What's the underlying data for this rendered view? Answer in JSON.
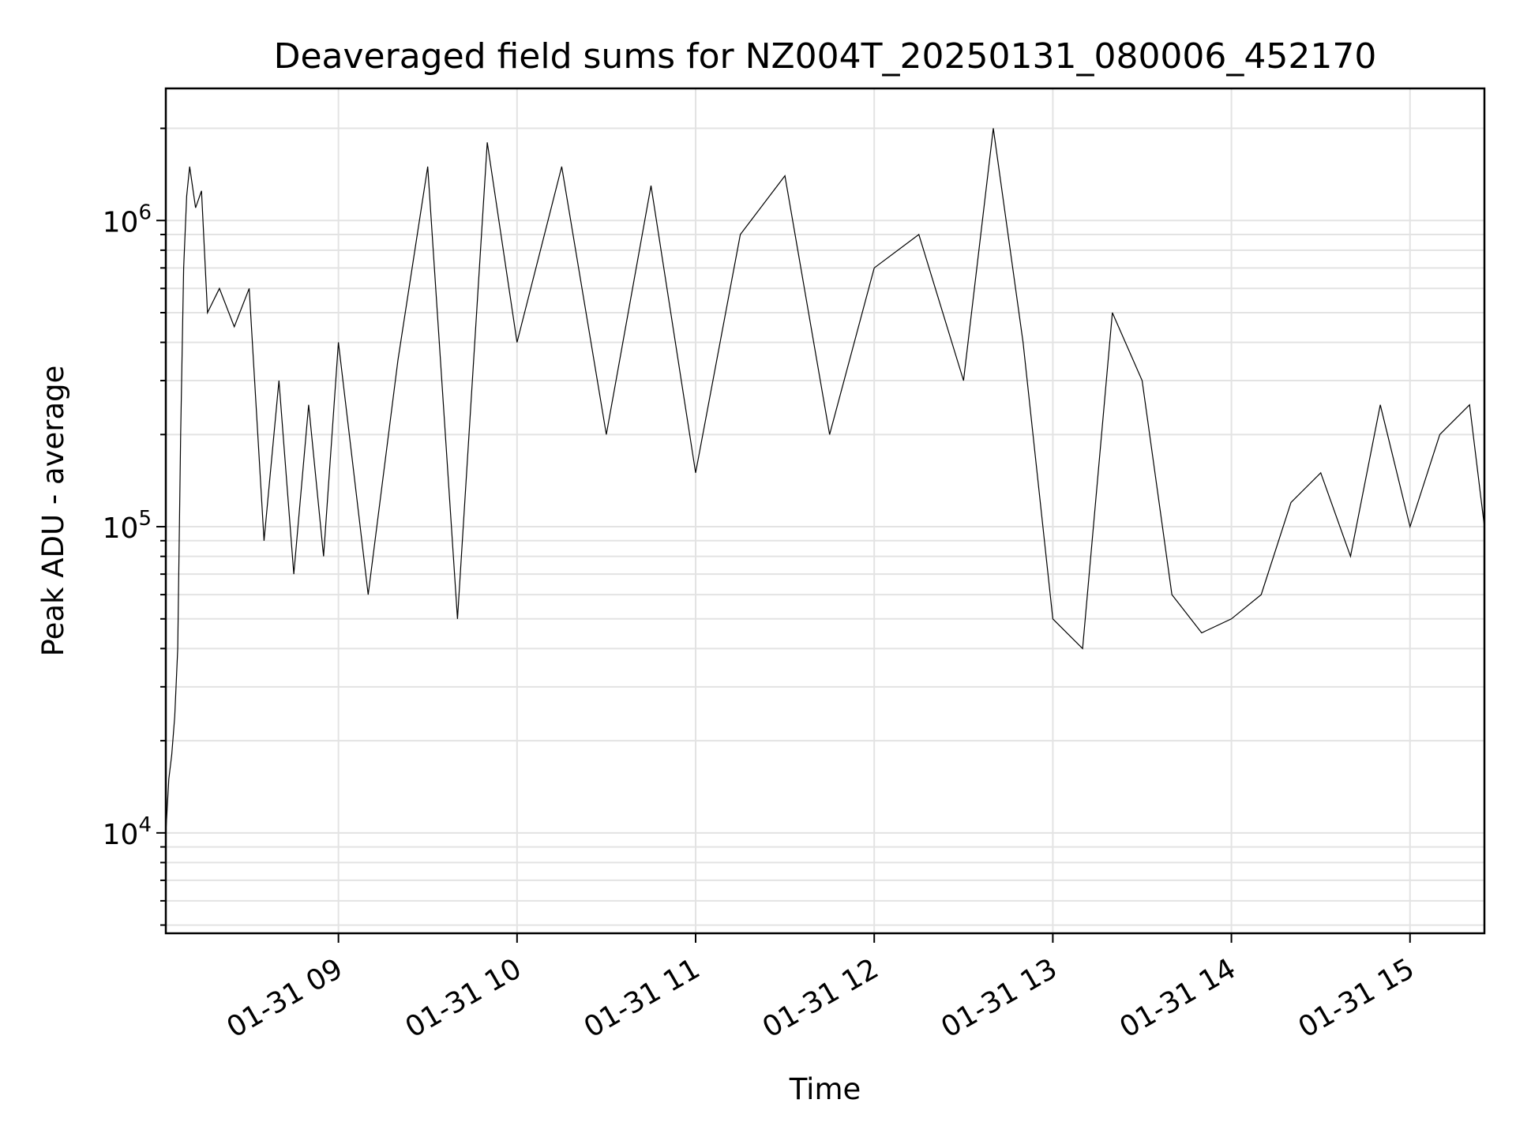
{
  "chart_data": {
    "type": "line",
    "title": "Deaveraged field sums for NZ004T_20250131_080006_452170",
    "xlabel": "Time",
    "ylabel": "Peak ADU - average",
    "x_scale": "time",
    "y_scale": "log",
    "xlim": [
      "2025-01-31 08:02",
      "2025-01-31 15:25"
    ],
    "ylim": [
      4700,
      2700000
    ],
    "grid": true,
    "x_ticks": [
      {
        "value": "2025-01-31 09:00",
        "label": "01-31 09"
      },
      {
        "value": "2025-01-31 10:00",
        "label": "01-31 10"
      },
      {
        "value": "2025-01-31 11:00",
        "label": "01-31 11"
      },
      {
        "value": "2025-01-31 12:00",
        "label": "01-31 12"
      },
      {
        "value": "2025-01-31 13:00",
        "label": "01-31 13"
      },
      {
        "value": "2025-01-31 14:00",
        "label": "01-31 14"
      },
      {
        "value": "2025-01-31 15:00",
        "label": "01-31 15"
      }
    ],
    "y_ticks": [
      {
        "value": 10000,
        "base": "10",
        "exp": "4"
      },
      {
        "value": 100000,
        "base": "10",
        "exp": "5"
      },
      {
        "value": 1000000,
        "base": "10",
        "exp": "6"
      }
    ],
    "series": [
      {
        "color": "#000000",
        "points": [
          [
            "2025-01-31 08:02",
            10000
          ],
          [
            "2025-01-31 08:03",
            15000
          ],
          [
            "2025-01-31 08:04",
            18000
          ],
          [
            "2025-01-31 08:05",
            24000
          ],
          [
            "2025-01-31 08:06",
            40000
          ],
          [
            "2025-01-31 08:07",
            200000
          ],
          [
            "2025-01-31 08:08",
            700000
          ],
          [
            "2025-01-31 08:09",
            1200000
          ],
          [
            "2025-01-31 08:10",
            1500000
          ],
          [
            "2025-01-31 08:12",
            1100000
          ],
          [
            "2025-01-31 08:14",
            1250000
          ],
          [
            "2025-01-31 08:16",
            500000
          ],
          [
            "2025-01-31 08:20",
            600000
          ],
          [
            "2025-01-31 08:25",
            450000
          ],
          [
            "2025-01-31 08:30",
            600000
          ],
          [
            "2025-01-31 08:35",
            90000
          ],
          [
            "2025-01-31 08:40",
            300000
          ],
          [
            "2025-01-31 08:45",
            70000
          ],
          [
            "2025-01-31 08:50",
            250000
          ],
          [
            "2025-01-31 08:55",
            80000
          ],
          [
            "2025-01-31 09:00",
            400000
          ],
          [
            "2025-01-31 09:10",
            60000
          ],
          [
            "2025-01-31 09:20",
            350000
          ],
          [
            "2025-01-31 09:30",
            1500000
          ],
          [
            "2025-01-31 09:40",
            50000
          ],
          [
            "2025-01-31 09:50",
            1800000
          ],
          [
            "2025-01-31 10:00",
            400000
          ],
          [
            "2025-01-31 10:15",
            1500000
          ],
          [
            "2025-01-31 10:30",
            200000
          ],
          [
            "2025-01-31 10:45",
            1300000
          ],
          [
            "2025-01-31 11:00",
            150000
          ],
          [
            "2025-01-31 11:15",
            900000
          ],
          [
            "2025-01-31 11:30",
            1400000
          ],
          [
            "2025-01-31 11:45",
            200000
          ],
          [
            "2025-01-31 12:00",
            700000
          ],
          [
            "2025-01-31 12:15",
            900000
          ],
          [
            "2025-01-31 12:30",
            300000
          ],
          [
            "2025-01-31 12:40",
            2000000
          ],
          [
            "2025-01-31 12:50",
            400000
          ],
          [
            "2025-01-31 13:00",
            50000
          ],
          [
            "2025-01-31 13:10",
            40000
          ],
          [
            "2025-01-31 13:20",
            500000
          ],
          [
            "2025-01-31 13:30",
            300000
          ],
          [
            "2025-01-31 13:40",
            60000
          ],
          [
            "2025-01-31 13:50",
            45000
          ],
          [
            "2025-01-31 14:00",
            50000
          ],
          [
            "2025-01-31 14:10",
            60000
          ],
          [
            "2025-01-31 14:20",
            120000
          ],
          [
            "2025-01-31 14:30",
            150000
          ],
          [
            "2025-01-31 14:40",
            80000
          ],
          [
            "2025-01-31 14:50",
            250000
          ],
          [
            "2025-01-31 15:00",
            100000
          ],
          [
            "2025-01-31 15:10",
            200000
          ],
          [
            "2025-01-31 15:20",
            250000
          ],
          [
            "2025-01-31 15:25",
            100000
          ]
        ]
      }
    ]
  }
}
